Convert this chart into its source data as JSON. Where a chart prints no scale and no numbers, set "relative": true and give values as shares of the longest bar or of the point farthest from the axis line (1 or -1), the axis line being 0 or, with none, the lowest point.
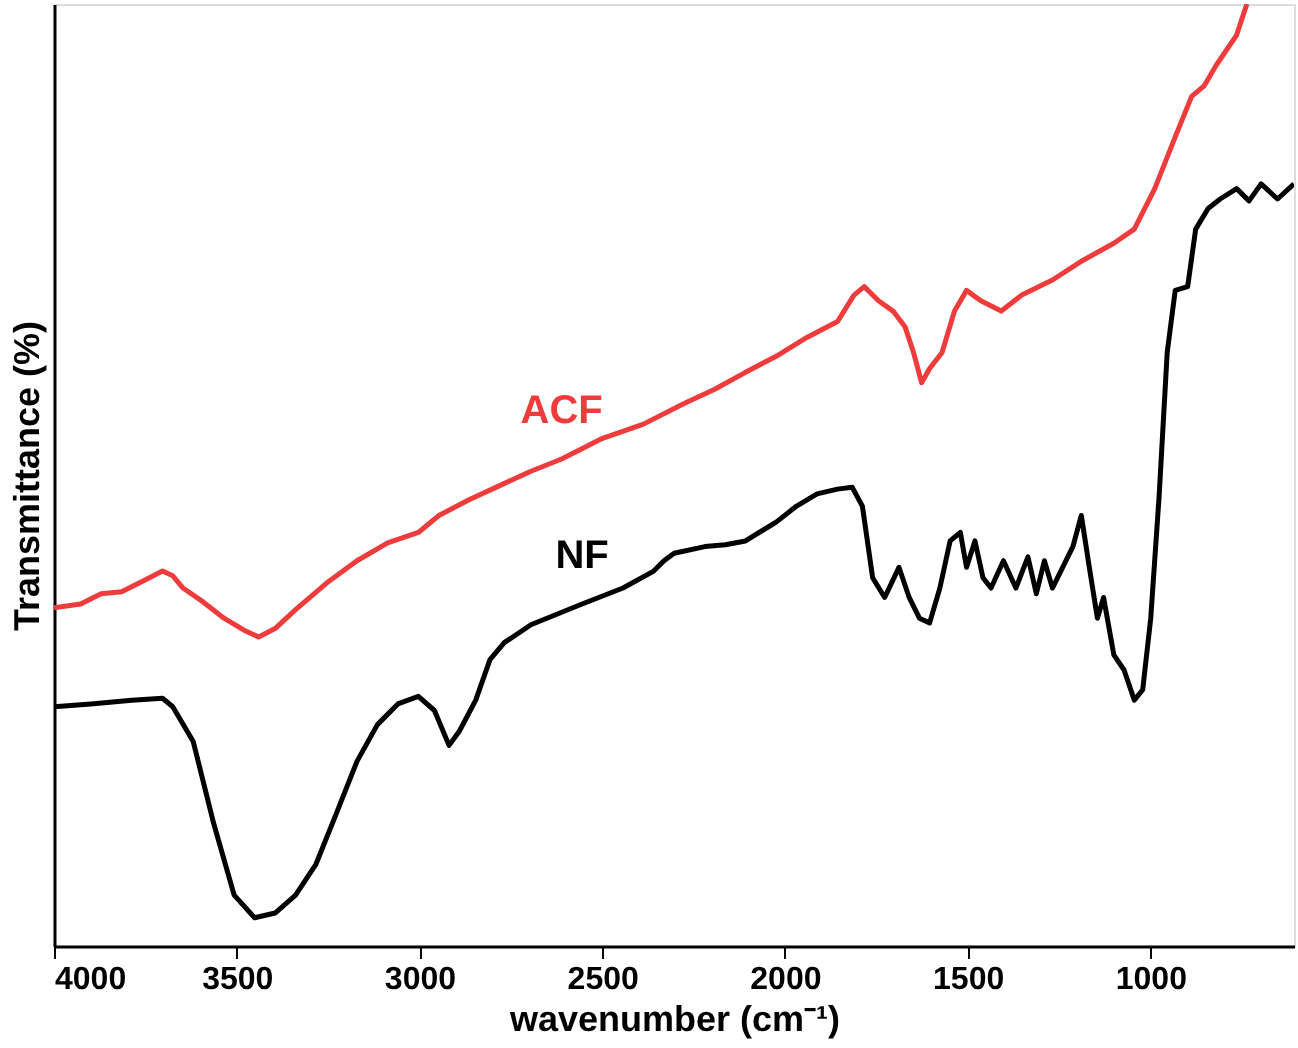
{
  "chart_data": {
    "type": "line",
    "xlabel": "wavenumber (cm⁻¹)",
    "ylabel": "Transmittance (%)",
    "relative": true,
    "xlim": [
      4000,
      607
    ],
    "xticks": [
      4000,
      3500,
      3000,
      2500,
      2000,
      1500,
      1000
    ],
    "tick_labels": "x",
    "grid": false,
    "marker": "none",
    "line_style": "solid",
    "series": [
      {
        "name": "ACF",
        "color": "#ee3b3b",
        "x": [
          4000,
          3927,
          3871,
          3815,
          3759,
          3703,
          3675,
          3647,
          3591,
          3535,
          3479,
          3440,
          3395,
          3339,
          3255,
          3171,
          3087,
          3003,
          2947,
          2863,
          2779,
          2695,
          2611,
          2499,
          2387,
          2276,
          2192,
          2108,
          2024,
          1940,
          1856,
          1811,
          1783,
          1744,
          1704,
          1671,
          1648,
          1626,
          1604,
          1570,
          1536,
          1503,
          1464,
          1408,
          1352,
          1268,
          1184,
          1100,
          1044,
          988,
          932,
          887,
          853,
          820,
          764,
          736
        ],
        "values": [
          0.359,
          0.363,
          0.374,
          0.376,
          0.387,
          0.398,
          0.393,
          0.38,
          0.365,
          0.348,
          0.335,
          0.328,
          0.337,
          0.357,
          0.385,
          0.409,
          0.428,
          0.439,
          0.457,
          0.474,
          0.489,
          0.504,
          0.517,
          0.539,
          0.554,
          0.576,
          0.591,
          0.609,
          0.626,
          0.646,
          0.663,
          0.691,
          0.7,
          0.685,
          0.674,
          0.657,
          0.63,
          0.598,
          0.613,
          0.63,
          0.674,
          0.696,
          0.685,
          0.674,
          0.691,
          0.707,
          0.728,
          0.746,
          0.761,
          0.804,
          0.859,
          0.902,
          0.913,
          0.935,
          0.967,
          1.0
        ]
      },
      {
        "name": "NF",
        "color": "#000000",
        "x": [
          4000,
          3899,
          3787,
          3703,
          3675,
          3619,
          3563,
          3507,
          3451,
          3395,
          3339,
          3283,
          3227,
          3171,
          3115,
          3059,
          3003,
          2959,
          2919,
          2891,
          2846,
          2807,
          2768,
          2695,
          2555,
          2443,
          2359,
          2331,
          2303,
          2219,
          2163,
          2108,
          2024,
          1968,
          1912,
          1856,
          1816,
          1788,
          1760,
          1727,
          1688,
          1660,
          1632,
          1604,
          1576,
          1548,
          1520,
          1503,
          1480,
          1458,
          1436,
          1402,
          1368,
          1335,
          1312,
          1290,
          1268,
          1240,
          1212,
          1189,
          1167,
          1145,
          1128,
          1100,
          1072,
          1044,
          1021,
          999,
          976,
          954,
          932,
          898,
          876,
          842,
          809,
          764,
          730,
          697,
          652,
          607
        ],
        "values": [
          0.254,
          0.257,
          0.261,
          0.263,
          0.254,
          0.217,
          0.13,
          0.054,
          0.03,
          0.035,
          0.054,
          0.087,
          0.141,
          0.196,
          0.235,
          0.257,
          0.265,
          0.25,
          0.213,
          0.228,
          0.261,
          0.304,
          0.322,
          0.341,
          0.363,
          0.38,
          0.398,
          0.409,
          0.417,
          0.424,
          0.426,
          0.43,
          0.45,
          0.467,
          0.48,
          0.485,
          0.487,
          0.467,
          0.391,
          0.37,
          0.402,
          0.37,
          0.348,
          0.343,
          0.38,
          0.43,
          0.439,
          0.402,
          0.43,
          0.391,
          0.38,
          0.409,
          0.38,
          0.413,
          0.374,
          0.409,
          0.38,
          0.402,
          0.424,
          0.457,
          0.402,
          0.348,
          0.37,
          0.309,
          0.293,
          0.261,
          0.272,
          0.348,
          0.478,
          0.63,
          0.696,
          0.7,
          0.761,
          0.783,
          0.793,
          0.804,
          0.791,
          0.809,
          0.793,
          0.809
        ]
      }
    ]
  }
}
